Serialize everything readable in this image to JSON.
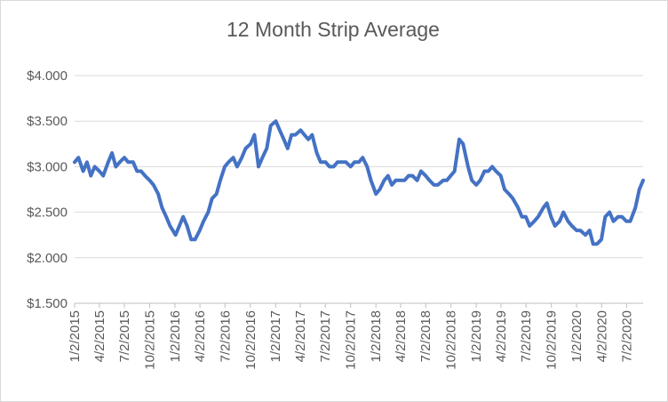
{
  "chart_data": {
    "type": "line",
    "title": "12 Month Strip Average",
    "xlabel": "",
    "ylabel": "",
    "ylim": [
      1.5,
      4.0
    ],
    "yticks": [
      "$1.500",
      "$2.000",
      "$2.500",
      "$3.000",
      "$3.500",
      "$4.000"
    ],
    "xticks": [
      "1/2/2015",
      "4/2/2015",
      "7/2/2015",
      "10/2/2015",
      "1/2/2016",
      "4/2/2016",
      "7/2/2016",
      "10/2/2016",
      "1/2/2017",
      "4/2/2017",
      "7/2/2017",
      "10/2/2017",
      "1/2/2018",
      "4/2/2018",
      "7/2/2018",
      "10/2/2018",
      "1/2/2019",
      "4/2/2019",
      "7/2/2019",
      "10/2/2019",
      "1/2/2020",
      "4/2/2020",
      "7/2/2020"
    ],
    "grid": true,
    "legend": "none",
    "line_color": "#4472c4",
    "series": [
      {
        "x": [
          "2015-01-02",
          "2015-01-16",
          "2015-02-02",
          "2015-02-16",
          "2015-03-02",
          "2015-03-16",
          "2015-04-02",
          "2015-04-16",
          "2015-05-04",
          "2015-05-18",
          "2015-06-01",
          "2015-06-15",
          "2015-07-02",
          "2015-07-16",
          "2015-08-03",
          "2015-08-17",
          "2015-09-01",
          "2015-09-15",
          "2015-10-02",
          "2015-10-16",
          "2015-11-02",
          "2015-11-16",
          "2015-12-01",
          "2015-12-15",
          "2016-01-04",
          "2016-01-18",
          "2016-02-01",
          "2016-02-15",
          "2016-03-01",
          "2016-03-15",
          "2016-04-01",
          "2016-04-15",
          "2016-05-02",
          "2016-05-16",
          "2016-06-01",
          "2016-06-15",
          "2016-07-01",
          "2016-07-15",
          "2016-08-01",
          "2016-08-15",
          "2016-09-01",
          "2016-09-15",
          "2016-10-03",
          "2016-10-17",
          "2016-11-01",
          "2016-11-15",
          "2016-12-01",
          "2016-12-15",
          "2017-01-03",
          "2017-01-17",
          "2017-02-01",
          "2017-02-15",
          "2017-03-01",
          "2017-03-15",
          "2017-04-03",
          "2017-04-17",
          "2017-05-01",
          "2017-05-15",
          "2017-06-01",
          "2017-06-15",
          "2017-07-03",
          "2017-07-17",
          "2017-08-01",
          "2017-08-15",
          "2017-09-01",
          "2017-09-15",
          "2017-10-02",
          "2017-10-16",
          "2017-11-01",
          "2017-11-15",
          "2017-12-01",
          "2017-12-15",
          "2018-01-02",
          "2018-01-16",
          "2018-02-01",
          "2018-02-15",
          "2018-03-01",
          "2018-03-15",
          "2018-04-02",
          "2018-04-16",
          "2018-05-01",
          "2018-05-15",
          "2018-06-01",
          "2018-06-15",
          "2018-07-02",
          "2018-07-16",
          "2018-08-01",
          "2018-08-15",
          "2018-09-04",
          "2018-09-17",
          "2018-10-01",
          "2018-10-15",
          "2018-11-01",
          "2018-11-15",
          "2018-12-03",
          "2018-12-17",
          "2019-01-02",
          "2019-01-16",
          "2019-02-01",
          "2019-02-15",
          "2019-03-01",
          "2019-03-15",
          "2019-04-01",
          "2019-04-15",
          "2019-05-01",
          "2019-05-15",
          "2019-06-03",
          "2019-06-17",
          "2019-07-01",
          "2019-07-15",
          "2019-08-01",
          "2019-08-15",
          "2019-09-03",
          "2019-09-16",
          "2019-10-01",
          "2019-10-15",
          "2019-11-01",
          "2019-11-15",
          "2019-12-02",
          "2019-12-16",
          "2020-01-02",
          "2020-01-16",
          "2020-02-03",
          "2020-02-18",
          "2020-03-02",
          "2020-03-16",
          "2020-04-01",
          "2020-04-15",
          "2020-05-01",
          "2020-05-15",
          "2020-06-01",
          "2020-06-15",
          "2020-07-01",
          "2020-07-15",
          "2020-08-03",
          "2020-08-17",
          "2020-08-31"
        ],
        "y": [
          3.05,
          3.1,
          2.95,
          3.05,
          2.9,
          3.0,
          2.95,
          2.9,
          3.05,
          3.15,
          3.0,
          3.05,
          3.1,
          3.05,
          3.05,
          2.95,
          2.95,
          2.9,
          2.85,
          2.8,
          2.7,
          2.55,
          2.45,
          2.35,
          2.25,
          2.35,
          2.45,
          2.35,
          2.2,
          2.2,
          2.3,
          2.4,
          2.5,
          2.65,
          2.7,
          2.85,
          3.0,
          3.05,
          3.1,
          3.0,
          3.1,
          3.2,
          3.25,
          3.35,
          3.0,
          3.1,
          3.2,
          3.45,
          3.5,
          3.4,
          3.3,
          3.2,
          3.35,
          3.35,
          3.4,
          3.35,
          3.3,
          3.35,
          3.15,
          3.05,
          3.05,
          3.0,
          3.0,
          3.05,
          3.05,
          3.05,
          3.0,
          3.05,
          3.05,
          3.1,
          3.0,
          2.85,
          2.7,
          2.75,
          2.85,
          2.9,
          2.8,
          2.85,
          2.85,
          2.85,
          2.9,
          2.9,
          2.85,
          2.95,
          2.9,
          2.85,
          2.8,
          2.8,
          2.85,
          2.85,
          2.9,
          2.95,
          3.3,
          3.25,
          3.0,
          2.85,
          2.8,
          2.85,
          2.95,
          2.95,
          3.0,
          2.95,
          2.9,
          2.75,
          2.7,
          2.65,
          2.55,
          2.45,
          2.45,
          2.35,
          2.4,
          2.45,
          2.55,
          2.6,
          2.45,
          2.35,
          2.4,
          2.5,
          2.4,
          2.35,
          2.3,
          2.3,
          2.25,
          2.3,
          2.15,
          2.15,
          2.2,
          2.45,
          2.5,
          2.4,
          2.45,
          2.45,
          2.4,
          2.4,
          2.55,
          2.75,
          2.85
        ]
      }
    ]
  }
}
